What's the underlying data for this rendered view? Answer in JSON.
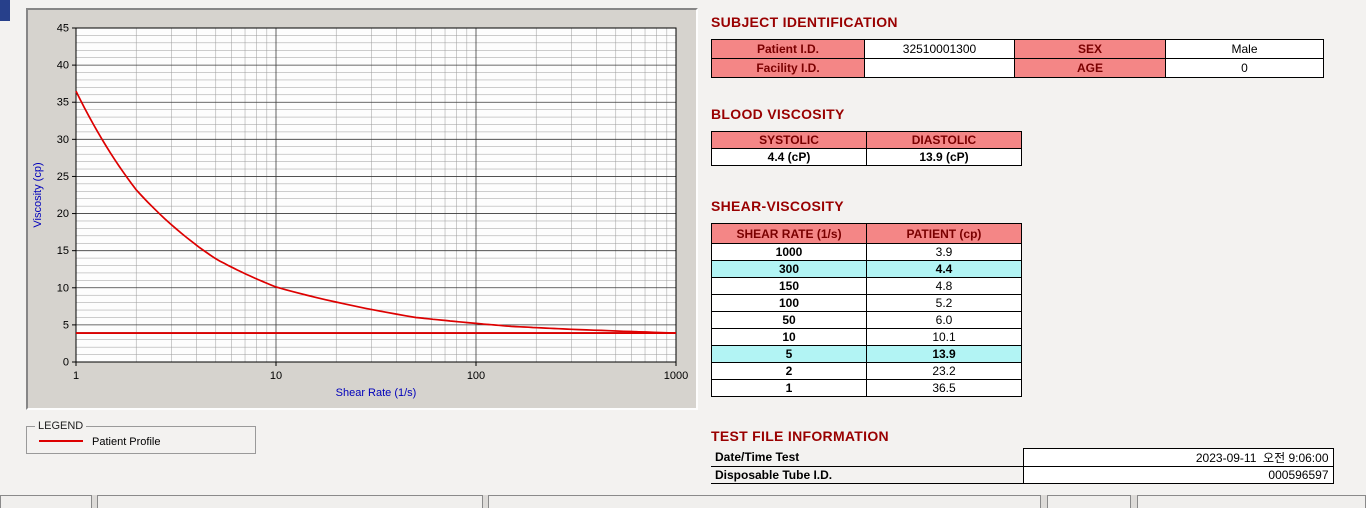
{
  "colors": {
    "heading": "#990000",
    "pink_header_bg": "#f48686",
    "highlight_cyan": "#b2f4f4",
    "curve": "#dd0000",
    "axis_label": "#0000bb"
  },
  "subject": {
    "title": "SUBJECT IDENTIFICATION",
    "rows": [
      {
        "label1": "Patient I.D.",
        "value1": "32510001300",
        "label2": "SEX",
        "value2": "Male"
      },
      {
        "label1": "Facility I.D.",
        "value1": "",
        "label2": "AGE",
        "value2": "0"
      }
    ]
  },
  "blood_viscosity": {
    "title": "BLOOD VISCOSITY",
    "headers": [
      "SYSTOLIC",
      "DIASTOLIC"
    ],
    "values": [
      "4.4 (cP)",
      "13.9 (cP)"
    ]
  },
  "shear_viscosity": {
    "title": "SHEAR-VISCOSITY",
    "headers": [
      "SHEAR RATE (1/s)",
      "PATIENT (cp)"
    ],
    "rows": [
      {
        "rate": "1000",
        "value": "3.9",
        "highlight": false
      },
      {
        "rate": "300",
        "value": "4.4",
        "highlight": true
      },
      {
        "rate": "150",
        "value": "4.8",
        "highlight": false
      },
      {
        "rate": "100",
        "value": "5.2",
        "highlight": false
      },
      {
        "rate": "50",
        "value": "6.0",
        "highlight": false
      },
      {
        "rate": "10",
        "value": "10.1",
        "highlight": false
      },
      {
        "rate": "5",
        "value": "13.9",
        "highlight": true
      },
      {
        "rate": "2",
        "value": "23.2",
        "highlight": false
      },
      {
        "rate": "1",
        "value": "36.5",
        "highlight": false
      }
    ]
  },
  "test_file": {
    "title": "TEST FILE INFORMATION",
    "rows": [
      {
        "label": "Date/Time Test",
        "value": "2023-09-11  오전 9:06:00"
      },
      {
        "label": "Disposable Tube I.D.",
        "value": "000596597"
      }
    ]
  },
  "legend": {
    "group_label": "LEGEND",
    "series_label": "Patient Profile"
  },
  "chart_data": {
    "type": "line",
    "title": "",
    "xlabel": "Shear Rate (1/s)",
    "ylabel": "Viscosity (cp)",
    "x_scale": "log",
    "xlim": [
      1,
      1000
    ],
    "ylim": [
      0,
      45
    ],
    "y_tick_step": 5,
    "x_ticks": [
      1,
      10,
      100,
      1000
    ],
    "grid": true,
    "legend_position": "below-left",
    "reference_line_y": 3.9,
    "series": [
      {
        "name": "Patient Profile",
        "x": [
          1,
          2,
          5,
          10,
          50,
          100,
          150,
          300,
          1000
        ],
        "y": [
          36.5,
          23.2,
          13.9,
          10.1,
          6.0,
          5.2,
          4.8,
          4.4,
          3.9
        ]
      }
    ]
  }
}
